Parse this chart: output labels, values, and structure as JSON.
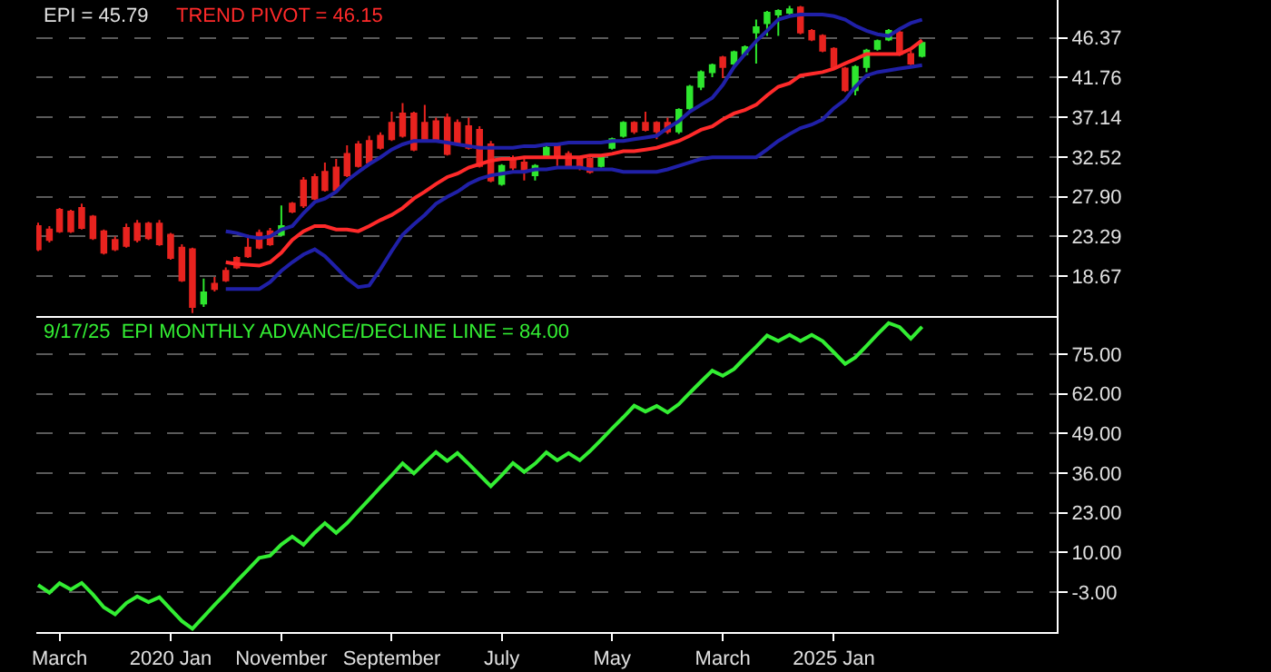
{
  "chart_data": [
    {
      "type": "candlestick",
      "title": "EPI = 45.79",
      "x": [
        "2019-01",
        "2019-02",
        "2019-03",
        "2019-04",
        "2019-05",
        "2019-06",
        "2019-07",
        "2019-08",
        "2019-09",
        "2019-10",
        "2019-11",
        "2019-12",
        "2020-01",
        "2020-02",
        "2020-03",
        "2020-04",
        "2020-05",
        "2020-06",
        "2020-07",
        "2020-08",
        "2020-09",
        "2020-10",
        "2020-11",
        "2020-12",
        "2021-01",
        "2021-02",
        "2021-03",
        "2021-04",
        "2021-05",
        "2021-06",
        "2021-07",
        "2021-08",
        "2021-09",
        "2021-10",
        "2021-11",
        "2021-12",
        "2022-01",
        "2022-02",
        "2022-03",
        "2022-04",
        "2022-05",
        "2022-06",
        "2022-07",
        "2022-08",
        "2022-09",
        "2022-10",
        "2022-11",
        "2022-12",
        "2023-01",
        "2023-02",
        "2023-03",
        "2023-04",
        "2023-05",
        "2023-06",
        "2023-07",
        "2023-08",
        "2023-09",
        "2023-10",
        "2023-11",
        "2023-12",
        "2024-01",
        "2024-02",
        "2024-03",
        "2024-04",
        "2024-05",
        "2024-06",
        "2024-07",
        "2024-08",
        "2024-09",
        "2024-10",
        "2024-11",
        "2024-12",
        "2025-01",
        "2025-02",
        "2025-03",
        "2025-04",
        "2025-05",
        "2025-06",
        "2025-07",
        "2025-08",
        "2025-09"
      ],
      "ohlc": [
        [
          24.5,
          24.9,
          21.6,
          21.8
        ],
        [
          24.1,
          24.5,
          22.6,
          22.9
        ],
        [
          26.4,
          26.6,
          23.7,
          23.9
        ],
        [
          26.2,
          26.4,
          23.7,
          23.9
        ],
        [
          26.6,
          27.1,
          24.1,
          24.3
        ],
        [
          25.6,
          25.8,
          22.9,
          23.1
        ],
        [
          23.9,
          24.1,
          21.2,
          21.4
        ],
        [
          22.9,
          23.3,
          21.6,
          21.8
        ],
        [
          24.3,
          24.8,
          22.0,
          22.2
        ],
        [
          24.8,
          25.2,
          22.6,
          22.9
        ],
        [
          24.8,
          25.0,
          22.9,
          23.1
        ],
        [
          24.8,
          25.2,
          22.2,
          22.4
        ],
        [
          23.5,
          23.7,
          20.6,
          20.8
        ],
        [
          22.0,
          22.4,
          18.0,
          18.2
        ],
        [
          21.8,
          22.0,
          14.4,
          15.1
        ],
        [
          15.5,
          18.4,
          15.1,
          16.8
        ],
        [
          17.8,
          18.6,
          16.9,
          17.2
        ],
        [
          19.3,
          19.7,
          18.0,
          18.2
        ],
        [
          20.8,
          21.0,
          19.5,
          19.7
        ],
        [
          22.0,
          23.5,
          20.8,
          21.0
        ],
        [
          23.7,
          24.1,
          21.8,
          22.0
        ],
        [
          23.9,
          24.3,
          22.2,
          22.4
        ],
        [
          23.5,
          26.9,
          23.3,
          24.5
        ],
        [
          27.1,
          27.3,
          26.0,
          26.2
        ],
        [
          29.8,
          30.2,
          26.6,
          26.9
        ],
        [
          30.2,
          30.6,
          27.5,
          27.7
        ],
        [
          30.8,
          31.9,
          28.5,
          28.7
        ],
        [
          31.3,
          32.3,
          28.5,
          28.7
        ],
        [
          32.9,
          33.9,
          30.2,
          30.4
        ],
        [
          34.0,
          34.4,
          31.3,
          31.5
        ],
        [
          34.4,
          35.0,
          31.7,
          31.9
        ],
        [
          35.0,
          35.4,
          33.4,
          33.6
        ],
        [
          36.5,
          37.8,
          34.4,
          34.6
        ],
        [
          37.6,
          38.8,
          34.8,
          35.0
        ],
        [
          37.6,
          37.8,
          33.2,
          33.4
        ],
        [
          36.5,
          38.6,
          34.2,
          34.4
        ],
        [
          36.7,
          37.1,
          34.4,
          34.6
        ],
        [
          37.1,
          37.6,
          32.7,
          32.9
        ],
        [
          36.5,
          36.9,
          33.8,
          34.0
        ],
        [
          36.1,
          37.1,
          33.4,
          33.6
        ],
        [
          35.7,
          36.1,
          31.3,
          31.5
        ],
        [
          34.0,
          34.4,
          29.6,
          29.8
        ],
        [
          29.4,
          31.7,
          29.2,
          31.5
        ],
        [
          32.3,
          32.7,
          31.0,
          31.3
        ],
        [
          31.9,
          32.3,
          29.8,
          30.8
        ],
        [
          30.4,
          31.7,
          29.8,
          31.5
        ],
        [
          32.5,
          33.8,
          32.3,
          33.6
        ],
        [
          34.0,
          34.2,
          31.5,
          32.5
        ],
        [
          32.9,
          33.2,
          31.3,
          31.5
        ],
        [
          32.3,
          32.5,
          31.0,
          31.3
        ],
        [
          32.3,
          32.5,
          30.6,
          30.8
        ],
        [
          31.5,
          32.7,
          31.3,
          32.5
        ],
        [
          33.6,
          34.8,
          33.4,
          34.6
        ],
        [
          35.0,
          36.7,
          34.8,
          36.5
        ],
        [
          36.5,
          36.7,
          35.2,
          35.5
        ],
        [
          36.5,
          37.8,
          35.5,
          35.7
        ],
        [
          36.5,
          36.7,
          34.6,
          35.5
        ],
        [
          36.5,
          37.1,
          35.2,
          35.5
        ],
        [
          35.5,
          38.2,
          35.2,
          38.0
        ],
        [
          38.2,
          40.9,
          37.8,
          40.7
        ],
        [
          40.7,
          42.6,
          40.3,
          42.4
        ],
        [
          42.4,
          43.4,
          41.8,
          43.2
        ],
        [
          44.1,
          44.3,
          41.7,
          43.0
        ],
        [
          43.4,
          44.9,
          43.0,
          44.7
        ],
        [
          44.5,
          45.5,
          44.3,
          45.3
        ],
        [
          47.0,
          48.5,
          43.4,
          47.6
        ],
        [
          48.1,
          49.5,
          46.6,
          49.3
        ],
        [
          49.1,
          49.7,
          46.6,
          49.5
        ],
        [
          49.3,
          50.1,
          49.1,
          49.7
        ],
        [
          49.9,
          50.1,
          46.8,
          47.0
        ],
        [
          47.2,
          47.4,
          46.0,
          46.2
        ],
        [
          46.6,
          46.8,
          44.7,
          44.9
        ],
        [
          45.1,
          45.3,
          42.8,
          43.0
        ],
        [
          42.8,
          43.0,
          40.1,
          40.3
        ],
        [
          40.3,
          43.2,
          39.7,
          43.0
        ],
        [
          43.0,
          45.1,
          42.4,
          44.9
        ],
        [
          45.1,
          46.2,
          44.9,
          46.0
        ],
        [
          46.2,
          47.4,
          46.0,
          47.2
        ],
        [
          47.0,
          47.4,
          44.3,
          44.5
        ],
        [
          44.5,
          44.9,
          43.2,
          43.4
        ],
        [
          44.3,
          45.9,
          44.1,
          45.8
        ]
      ],
      "colors": [
        "#e8231f",
        "#e8231f",
        "#e8231f",
        "#e8231f",
        "#e8231f",
        "#e8231f",
        "#e8231f",
        "#e8231f",
        "#e8231f",
        "#e8231f",
        "#e8231f",
        "#e8231f",
        "#e8231f",
        "#e8231f",
        "#e8231f",
        "#2ee62e",
        "#e8231f",
        "#e8231f",
        "#e8231f",
        "#e8231f",
        "#e8231f",
        "#e8231f",
        "#2ee62e",
        "#e8231f",
        "#e8231f",
        "#e8231f",
        "#e8231f",
        "#e8231f",
        "#e8231f",
        "#e8231f",
        "#e8231f",
        "#e8231f",
        "#e8231f",
        "#e8231f",
        "#e8231f",
        "#e8231f",
        "#e8231f",
        "#e8231f",
        "#e8231f",
        "#e8231f",
        "#e8231f",
        "#e8231f",
        "#2ee62e",
        "#e8231f",
        "#e8231f",
        "#2ee62e",
        "#2ee62e",
        "#e8231f",
        "#e8231f",
        "#e8231f",
        "#e8231f",
        "#2ee62e",
        "#2ee62e",
        "#2ee62e",
        "#e8231f",
        "#e8231f",
        "#e8231f",
        "#e8231f",
        "#2ee62e",
        "#2ee62e",
        "#2ee62e",
        "#2ee62e",
        "#e8231f",
        "#2ee62e",
        "#2ee62e",
        "#2ee62e",
        "#2ee62e",
        "#2ee62e",
        "#2ee62e",
        "#e8231f",
        "#e8231f",
        "#e8231f",
        "#e8231f",
        "#e8231f",
        "#2ee62e",
        "#2ee62e",
        "#2ee62e",
        "#2ee62e",
        "#e8231f",
        "#e8231f",
        "#2ee62e"
      ],
      "series": [
        {
          "type": "line",
          "name": "TREND PIVOT = 46.15",
          "color": "#ff2a2a",
          "values": [
            null,
            null,
            null,
            null,
            null,
            null,
            null,
            null,
            null,
            null,
            null,
            null,
            null,
            null,
            null,
            null,
            null,
            20.3,
            20.1,
            20.0,
            19.9,
            20.3,
            21.4,
            22.9,
            23.9,
            24.5,
            24.5,
            24.1,
            24.1,
            23.9,
            24.5,
            25.2,
            25.8,
            26.6,
            27.7,
            28.5,
            29.4,
            30.2,
            30.6,
            31.3,
            31.7,
            32.1,
            32.3,
            32.3,
            32.5,
            32.5,
            32.5,
            32.5,
            32.5,
            32.5,
            32.7,
            32.7,
            32.9,
            33.2,
            33.2,
            33.4,
            33.6,
            34.0,
            34.4,
            35.0,
            35.7,
            36.1,
            36.9,
            37.6,
            38.0,
            38.6,
            39.7,
            40.7,
            41.1,
            42.0,
            42.2,
            42.4,
            42.8,
            43.4,
            43.9,
            44.5,
            44.5,
            44.5,
            44.5,
            45.1,
            46.1
          ]
        },
        {
          "type": "line",
          "color": "#2020a8",
          "values": [
            null,
            null,
            null,
            null,
            null,
            null,
            null,
            null,
            null,
            null,
            null,
            null,
            null,
            null,
            null,
            null,
            null,
            23.9,
            23.7,
            23.3,
            23.1,
            23.3,
            24.1,
            24.5,
            26.0,
            27.3,
            27.7,
            28.5,
            29.8,
            30.8,
            31.7,
            32.5,
            33.4,
            34.0,
            34.4,
            34.4,
            34.4,
            34.2,
            34.0,
            33.8,
            33.6,
            33.6,
            33.6,
            33.6,
            33.8,
            33.8,
            34.0,
            34.0,
            34.2,
            34.2,
            34.2,
            34.2,
            34.4,
            34.4,
            34.6,
            34.8,
            35.0,
            35.9,
            36.7,
            37.8,
            38.6,
            39.4,
            40.9,
            43.0,
            44.5,
            46.0,
            47.2,
            48.5,
            48.9,
            49.1,
            49.1,
            49.1,
            48.9,
            48.5,
            47.8,
            47.2,
            46.8,
            46.6,
            47.4,
            48.1,
            48.5
          ]
        },
        {
          "type": "line",
          "color": "#2020a8",
          "values": [
            null,
            null,
            null,
            null,
            null,
            null,
            null,
            null,
            null,
            null,
            null,
            null,
            null,
            null,
            null,
            null,
            null,
            17.2,
            17.2,
            17.2,
            17.2,
            18.0,
            19.3,
            20.3,
            21.2,
            21.8,
            21.0,
            19.7,
            18.4,
            17.4,
            17.6,
            19.5,
            21.6,
            23.5,
            24.7,
            25.8,
            27.1,
            27.9,
            28.5,
            29.4,
            30.0,
            30.4,
            30.6,
            30.8,
            30.8,
            31.1,
            31.1,
            31.3,
            31.3,
            31.3,
            31.1,
            31.1,
            31.1,
            30.8,
            30.8,
            30.8,
            30.8,
            31.1,
            31.5,
            31.9,
            32.3,
            32.5,
            32.5,
            32.5,
            32.5,
            32.5,
            33.4,
            34.4,
            35.2,
            35.9,
            36.3,
            36.9,
            38.2,
            39.2,
            40.7,
            42.0,
            42.4,
            42.6,
            42.8,
            43.0,
            43.2
          ]
        }
      ],
      "xlim": [
        "2018-12-27",
        "2026-09-07"
      ],
      "ylim": [
        14.05,
        50.78
      ],
      "yticks": [
        18.67,
        23.29,
        {
          "value": 27.9,
          "label": "27.90"
        },
        32.52,
        37.14,
        41.76,
        46.37
      ],
      "grid": "y",
      "legend": false,
      "tick_labels": "y"
    },
    {
      "type": "line",
      "title": "9/17/25  EPI MONTHLY ADVANCE/DECLINE LINE = 84.00",
      "x": [
        "2019-01",
        "2019-02",
        "2019-03",
        "2019-04",
        "2019-05",
        "2019-06",
        "2019-07",
        "2019-08",
        "2019-09",
        "2019-10",
        "2019-11",
        "2019-12",
        "2020-01",
        "2020-02",
        "2020-03",
        "2020-04",
        "2020-05",
        "2020-06",
        "2020-07",
        "2020-08",
        "2020-09",
        "2020-10",
        "2020-11",
        "2020-12",
        "2021-01",
        "2021-02",
        "2021-03",
        "2021-04",
        "2021-05",
        "2021-06",
        "2021-07",
        "2021-08",
        "2021-09",
        "2021-10",
        "2021-11",
        "2021-12",
        "2022-01",
        "2022-02",
        "2022-03",
        "2022-04",
        "2022-05",
        "2022-06",
        "2022-07",
        "2022-08",
        "2022-09",
        "2022-10",
        "2022-11",
        "2022-12",
        "2023-01",
        "2023-02",
        "2023-03",
        "2023-04",
        "2023-05",
        "2023-06",
        "2023-07",
        "2023-08",
        "2023-09",
        "2023-10",
        "2023-11",
        "2023-12",
        "2024-01",
        "2024-02",
        "2024-03",
        "2024-04",
        "2024-05",
        "2024-06",
        "2024-07",
        "2024-08",
        "2024-09",
        "2024-10",
        "2024-11",
        "2024-12",
        "2025-01",
        "2025-02",
        "2025-03",
        "2025-04",
        "2025-05",
        "2025-06",
        "2025-07",
        "2025-08",
        "2025-09"
      ],
      "series": [
        {
          "color": "#33ee33",
          "values": [
            -0.7,
            -3.2,
            -0.1,
            -2.2,
            0.0,
            -3.8,
            -8.0,
            -10.3,
            -6.6,
            -4.4,
            -6.3,
            -4.7,
            -8.6,
            -12.5,
            -15.0,
            -11.1,
            -7.2,
            -3.4,
            0.5,
            4.3,
            8.2,
            8.9,
            12.6,
            15.2,
            12.5,
            16.5,
            19.6,
            16.4,
            19.6,
            23.6,
            27.4,
            31.4,
            35.3,
            39.2,
            35.9,
            39.4,
            42.9,
            40.0,
            42.6,
            39.0,
            35.4,
            31.7,
            35.3,
            39.3,
            36.4,
            39.1,
            42.8,
            40.2,
            42.5,
            40.2,
            43.2,
            46.9,
            50.6,
            54.3,
            58.1,
            56.2,
            58.0,
            55.9,
            58.6,
            62.3,
            66.0,
            69.6,
            67.9,
            70.1,
            73.8,
            77.4,
            81.1,
            79.3,
            81.3,
            79.3,
            81.3,
            79.3,
            75.6,
            71.8,
            73.9,
            77.7,
            81.5,
            85.2,
            83.9,
            80.1,
            84.0
          ]
        }
      ],
      "xlim": [
        "2018-12-27",
        "2026-09-07"
      ],
      "xticks": [
        {
          "value": "2019-03",
          "label": "March"
        },
        {
          "value": "2020-01",
          "label": "2020 Jan"
        },
        {
          "value": "2020-11",
          "label": "November"
        },
        {
          "value": "2021-09",
          "label": "September"
        },
        {
          "value": "2022-07",
          "label": "July"
        },
        {
          "value": "2023-05",
          "label": "May"
        },
        {
          "value": "2024-03",
          "label": "March"
        },
        {
          "value": "2025-01",
          "label": "2025 Jan"
        }
      ],
      "ylim": [
        -16.1,
        87.5
      ],
      "yticks": [
        {
          "value": -3,
          "label": "-3.00"
        },
        {
          "value": 10,
          "label": "10.00"
        },
        {
          "value": 23,
          "label": "23.00"
        },
        {
          "value": 36,
          "label": "36.00"
        },
        {
          "value": 49,
          "label": "49.00"
        },
        {
          "value": 62,
          "label": "62.00"
        },
        {
          "value": 75,
          "label": "75.00"
        }
      ],
      "grid": "y",
      "legend": false
    }
  ]
}
